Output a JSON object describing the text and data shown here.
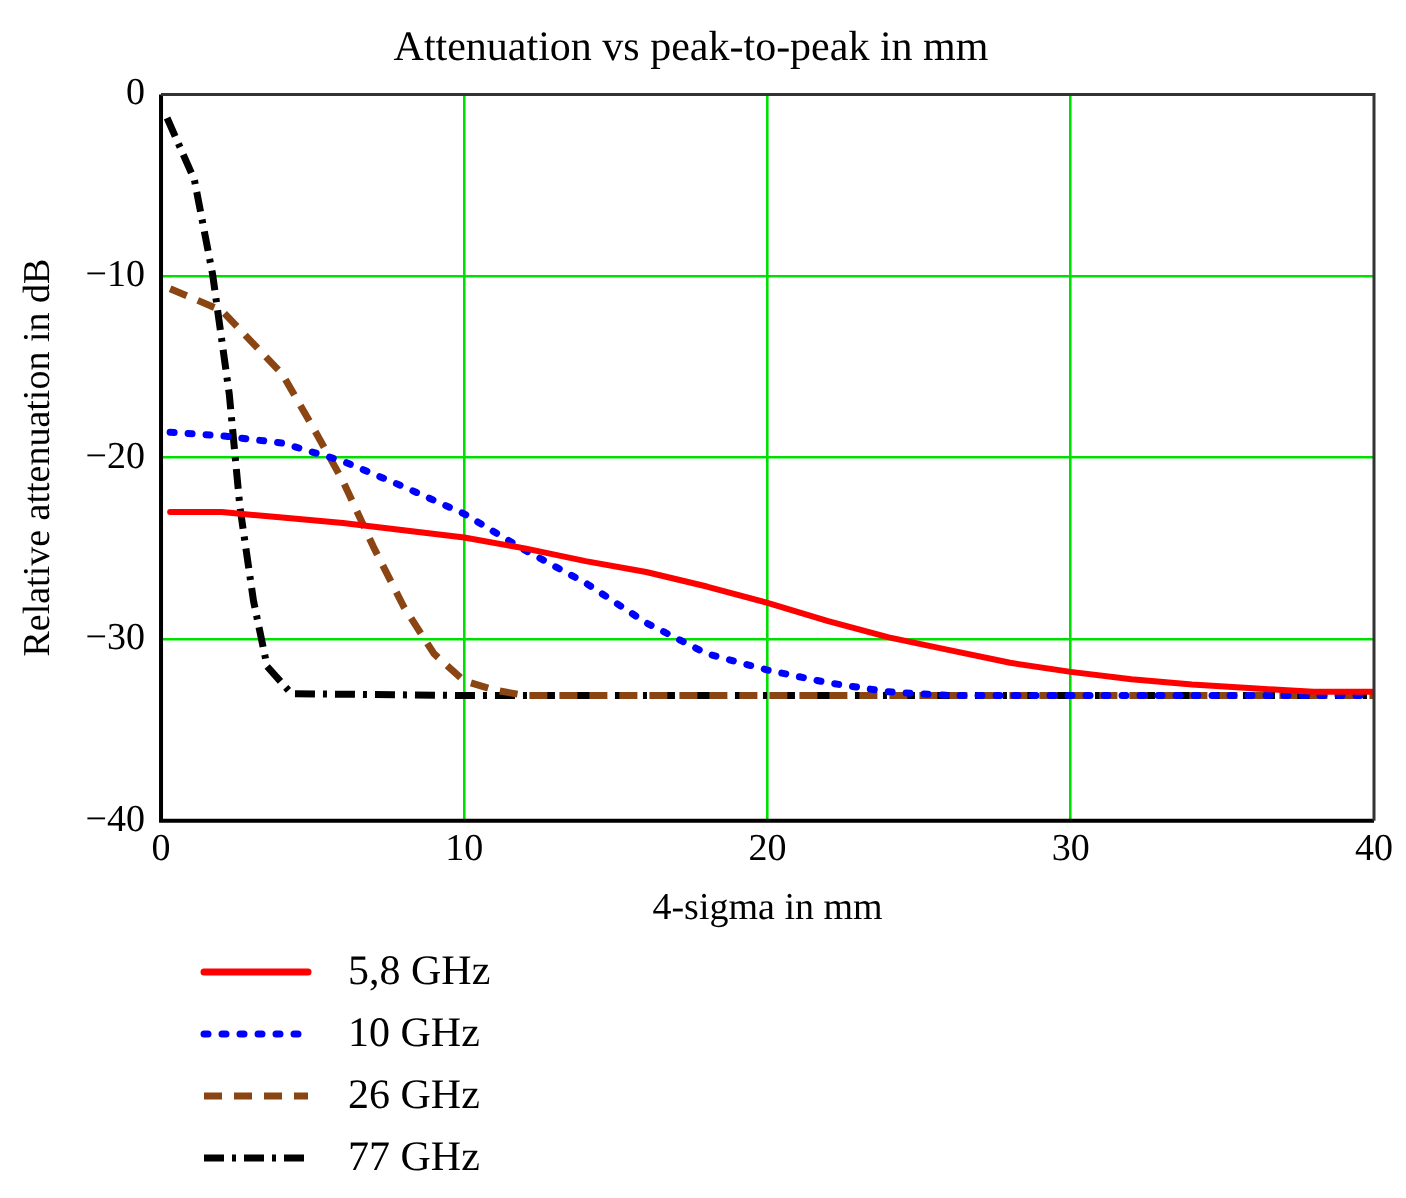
{
  "chart_data": {
    "type": "line",
    "title": "Attenuation vs peak-to-peak in mm",
    "xlabel": "4-sigma in mm",
    "ylabel": "Relative attenuation in dB",
    "xlim": [
      0,
      40
    ],
    "xticks": [
      0,
      10,
      20,
      30,
      40
    ],
    "ylim": [
      -40,
      0
    ],
    "yticks": [
      {
        "value": -40,
        "label": "−40"
      },
      {
        "value": -30,
        "label": "−30"
      },
      {
        "value": -20,
        "label": "−20"
      },
      {
        "value": -10,
        "label": "−10"
      },
      0
    ],
    "grid": true,
    "legend": "bottom left",
    "marker": "none",
    "series": [
      {
        "name": "5,8 GHz",
        "color": "#ff0000",
        "line_style": "solid",
        "x": [
          0.3,
          2,
          4,
          6,
          8,
          10,
          12,
          14,
          16,
          18,
          20,
          22,
          24,
          26,
          28,
          30,
          32,
          34,
          36,
          38,
          40
        ],
        "values": [
          -23,
          -23,
          -23.3,
          -23.6,
          -24,
          -24.4,
          -25,
          -25.7,
          -26.3,
          -27.1,
          -28,
          -29,
          -29.9,
          -30.6,
          -31.3,
          -31.8,
          -32.2,
          -32.5,
          -32.7,
          -32.9,
          -32.9
        ]
      },
      {
        "name": "10 GHz",
        "color": "#0000ff",
        "line_style": "dotted",
        "x": [
          0.3,
          2,
          4,
          6,
          8,
          10,
          12,
          14,
          16,
          18,
          20,
          22,
          24,
          26,
          30,
          35,
          40
        ],
        "values": [
          -18.6,
          -18.8,
          -19.2,
          -20.2,
          -21.6,
          -23.1,
          -25.1,
          -26.9,
          -29.1,
          -30.8,
          -31.7,
          -32.4,
          -32.9,
          -33.1,
          -33.1,
          -33.1,
          -33.1
        ]
      },
      {
        "name": "26 GHz",
        "color": "#8b4513",
        "line_style": "dashed",
        "x": [
          0.3,
          2,
          4,
          5,
          6,
          7,
          8,
          9,
          10,
          11,
          12,
          20,
          30,
          40
        ],
        "values": [
          -10.7,
          -11.9,
          -15.4,
          -18.3,
          -21.3,
          -24.9,
          -28.2,
          -30.8,
          -32.3,
          -32.8,
          -33.1,
          -33.1,
          -33.1,
          -33.1
        ]
      },
      {
        "name": "77 GHz",
        "color": "#000000",
        "line_style": "dashdot",
        "x": [
          0.2,
          1.1,
          1.7,
          2.25,
          2.6,
          3.05,
          3.5,
          4.3,
          10,
          20,
          30,
          40
        ],
        "values": [
          -1.3,
          -4.7,
          -9.9,
          -16.5,
          -22.7,
          -27.9,
          -31.5,
          -33,
          -33.1,
          -33.1,
          -33.1,
          -33.1
        ]
      }
    ]
  }
}
